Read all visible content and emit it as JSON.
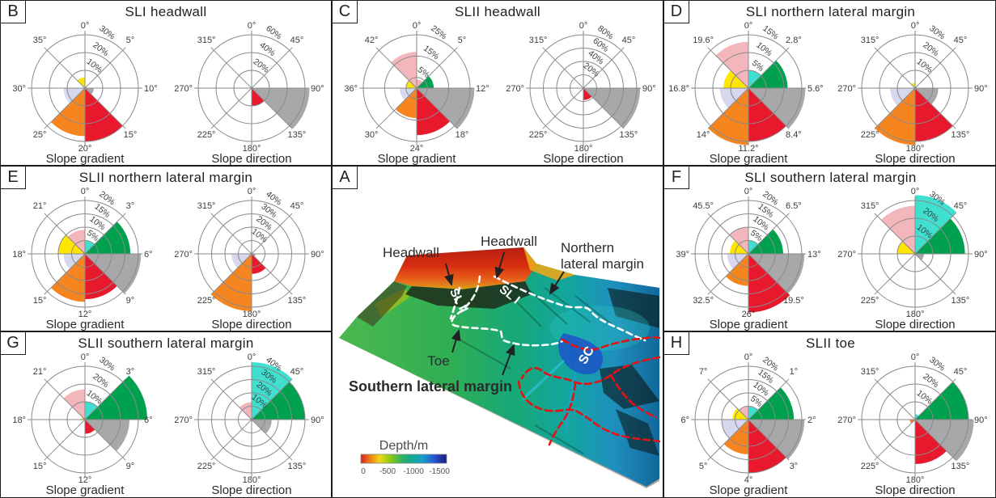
{
  "figure": {
    "background": "#ffffff"
  },
  "colors": {
    "red": "#e8192c",
    "orange": "#f6851f",
    "gray": "#a8a8aa",
    "green": "#00a14e",
    "cyan": "#3fe0d0",
    "pink": "#f3b6ba",
    "lavender": "#d7d7ee",
    "yellow": "#ffe600",
    "grid": "#8a8a8c",
    "map_outline_white": "#ffffff",
    "map_outline_red": "#e81010"
  },
  "chart_data": {
    "type": "rose-multi",
    "ring_unit": "%",
    "panels": [
      {
        "letter": "B",
        "title": "SLI headwall",
        "roses": [
          {
            "subtitle": "Slope gradient",
            "axis": [
              "0°",
              "5°",
              "10°",
              "15°",
              "20°",
              "25°",
              "30°",
              "35°"
            ],
            "rings": [
              10,
              20,
              30
            ],
            "wedges": [
              [
                "gray",
                90,
                135,
                5
              ],
              [
                "red",
                135,
                180,
                30
              ],
              [
                "orange",
                180,
                225,
                27
              ],
              [
                "lavender",
                225,
                270,
                12
              ],
              [
                "yellow",
                315,
                360,
                6
              ]
            ]
          },
          {
            "subtitle": "Slope direction",
            "axis": [
              "0°",
              "45°",
              "90°",
              "135°",
              "180°",
              "225°",
              "270°",
              "315°"
            ],
            "rings": [
              20,
              40,
              60
            ],
            "wedges": [
              [
                "gray",
                90,
                135,
                65
              ],
              [
                "red",
                135,
                180,
                20
              ]
            ]
          }
        ]
      },
      {
        "letter": "C",
        "title": "SLII headwall",
        "roses": [
          {
            "subtitle": "Slope gradient",
            "axis": [
              "0°",
              "5°",
              "12°",
              "18°",
              "24°",
              "30°",
              "36°",
              "42°"
            ],
            "rings": [
              5,
              15,
              25
            ],
            "wedges": [
              [
                "pink",
                0,
                45,
                4
              ],
              [
                "green",
                45,
                90,
                8
              ],
              [
                "gray",
                90,
                135,
                27
              ],
              [
                "red",
                135,
                180,
                22
              ],
              [
                "orange",
                180,
                225,
                14
              ],
              [
                "lavender",
                225,
                270,
                8
              ],
              [
                "yellow",
                270,
                315,
                5
              ],
              [
                "pink",
                315,
                360,
                17
              ]
            ]
          },
          {
            "subtitle": "Slope direction",
            "axis": [
              "0°",
              "45°",
              "90°",
              "135°",
              "180°",
              "225°",
              "270°",
              "315°"
            ],
            "rings": [
              20,
              40,
              60,
              80
            ],
            "wedges": [
              [
                "gray",
                90,
                135,
                85
              ],
              [
                "red",
                135,
                180,
                18
              ]
            ]
          }
        ]
      },
      {
        "letter": "D",
        "title": "SLI northern lateral margin",
        "roses": [
          {
            "subtitle": "Slope gradient",
            "axis": [
              "0°",
              "2.8°",
              "5.6°",
              "8.4°",
              "11.2°",
              "14°",
              "16.8°",
              "19.6°"
            ],
            "rings": [
              5,
              10,
              15
            ],
            "wedges": [
              [
                "cyan",
                0,
                45,
                5
              ],
              [
                "green",
                45,
                90,
                11
              ],
              [
                "gray",
                90,
                135,
                16
              ],
              [
                "red",
                135,
                180,
                15
              ],
              [
                "orange",
                180,
                225,
                16
              ],
              [
                "lavender",
                225,
                270,
                8
              ],
              [
                "yellow",
                270,
                315,
                7
              ],
              [
                "pink",
                315,
                360,
                13
              ]
            ]
          },
          {
            "subtitle": "Slope direction",
            "axis": [
              "0°",
              "45°",
              "90°",
              "135°",
              "180°",
              "225°",
              "270°",
              "315°"
            ],
            "rings": [
              10,
              20,
              30
            ],
            "wedges": [
              [
                "gray",
                90,
                135,
                13
              ],
              [
                "red",
                135,
                180,
                30
              ],
              [
                "orange",
                180,
                225,
                32
              ],
              [
                "lavender",
                225,
                270,
                14
              ],
              [
                "yellow",
                315,
                360,
                3
              ]
            ]
          }
        ]
      },
      {
        "letter": "E",
        "title": "SLII northern lateral margin",
        "roses": [
          {
            "subtitle": "Slope gradient",
            "axis": [
              "0°",
              "3°",
              "6°",
              "9°",
              "12°",
              "15°",
              "18°",
              "21°"
            ],
            "rings": [
              5,
              10,
              15,
              20
            ],
            "wedges": [
              [
                "cyan",
                0,
                45,
                5
              ],
              [
                "green",
                45,
                90,
                17
              ],
              [
                "gray",
                90,
                135,
                21
              ],
              [
                "red",
                135,
                180,
                17
              ],
              [
                "orange",
                180,
                225,
                18
              ],
              [
                "lavender",
                225,
                270,
                8
              ],
              [
                "yellow",
                270,
                315,
                10
              ],
              [
                "pink",
                315,
                360,
                9
              ]
            ]
          },
          {
            "subtitle": "Slope direction",
            "axis": [
              "0°",
              "45°",
              "90°",
              "135°",
              "180°",
              "225°",
              "270°",
              "315°"
            ],
            "rings": [
              10,
              20,
              30,
              40
            ],
            "wedges": [
              [
                "gray",
                90,
                135,
                3
              ],
              [
                "red",
                135,
                180,
                15
              ],
              [
                "orange",
                180,
                225,
                43
              ],
              [
                "lavender",
                225,
                270,
                15
              ]
            ]
          }
        ]
      },
      {
        "letter": "F",
        "title": "SLI southern lateral margin",
        "roses": [
          {
            "subtitle": "Slope gradient",
            "axis": [
              "0°",
              "6.5°",
              "13°",
              "19.5°",
              "26°",
              "32.5°",
              "39°",
              "45.5°"
            ],
            "rings": [
              5,
              10,
              15,
              20
            ],
            "wedges": [
              [
                "cyan",
                0,
                45,
                5
              ],
              [
                "green",
                45,
                90,
                13
              ],
              [
                "gray",
                90,
                135,
                21
              ],
              [
                "red",
                135,
                180,
                22
              ],
              [
                "orange",
                180,
                225,
                12
              ],
              [
                "lavender",
                225,
                270,
                8
              ],
              [
                "yellow",
                270,
                315,
                7
              ],
              [
                "pink",
                315,
                360,
                10
              ]
            ]
          },
          {
            "subtitle": "Slope direction",
            "axis": [
              "0°",
              "45°",
              "90°",
              "135°",
              "180°",
              "225°",
              "270°",
              "315°"
            ],
            "rings": [
              10,
              20,
              30
            ],
            "wedges": [
              [
                "cyan",
                0,
                45,
                33
              ],
              [
                "green",
                45,
                90,
                28
              ],
              [
                "gray",
                90,
                135,
                5
              ],
              [
                "yellow",
                270,
                315,
                10
              ],
              [
                "pink",
                315,
                360,
                27
              ]
            ]
          }
        ]
      },
      {
        "letter": "G",
        "title": "SLII southern lateral margin",
        "roses": [
          {
            "subtitle": "Slope gradient",
            "axis": [
              "0°",
              "3°",
              "6°",
              "9°",
              "12°",
              "15°",
              "18°",
              "21°"
            ],
            "rings": [
              10,
              20,
              30
            ],
            "wedges": [
              [
                "cyan",
                0,
                45,
                10
              ],
              [
                "green",
                45,
                90,
                35
              ],
              [
                "gray",
                90,
                135,
                25
              ],
              [
                "red",
                135,
                180,
                8
              ],
              [
                "yellow",
                270,
                315,
                2
              ],
              [
                "pink",
                315,
                360,
                17
              ]
            ]
          },
          {
            "subtitle": "Slope direction",
            "axis": [
              "0°",
              "45°",
              "90°",
              "135°",
              "180°",
              "225°",
              "270°",
              "315°"
            ],
            "rings": [
              10,
              20,
              30,
              40
            ],
            "wedges": [
              [
                "cyan",
                0,
                45,
                43
              ],
              [
                "green",
                45,
                90,
                40
              ],
              [
                "gray",
                90,
                135,
                15
              ],
              [
                "pink",
                315,
                360,
                13
              ]
            ]
          }
        ]
      },
      {
        "letter": "H",
        "title": "SLII toe",
        "roses": [
          {
            "subtitle": "Slope gradient",
            "axis": [
              "0°",
              "1°",
              "2°",
              "3°",
              "4°",
              "5°",
              "6°",
              "7°"
            ],
            "rings": [
              5,
              10,
              15,
              20
            ],
            "wedges": [
              [
                "cyan",
                0,
                45,
                5
              ],
              [
                "green",
                45,
                90,
                17
              ],
              [
                "gray",
                90,
                135,
                21
              ],
              [
                "red",
                135,
                180,
                20
              ],
              [
                "orange",
                180,
                225,
                13
              ],
              [
                "lavender",
                225,
                270,
                10
              ],
              [
                "yellow",
                270,
                315,
                6
              ],
              [
                "pink",
                315,
                360,
                5
              ]
            ]
          },
          {
            "subtitle": "Slope direction",
            "axis": [
              "0°",
              "45°",
              "90°",
              "135°",
              "180°",
              "225°",
              "270°",
              "315°"
            ],
            "rings": [
              10,
              20,
              30
            ],
            "wedges": [
              [
                "cyan",
                0,
                45,
                3
              ],
              [
                "green",
                45,
                90,
                30
              ],
              [
                "gray",
                90,
                135,
                33
              ],
              [
                "red",
                135,
                180,
                25
              ],
              [
                "orange",
                225,
                270,
                3
              ]
            ]
          }
        ]
      }
    ]
  },
  "map": {
    "letter": "A",
    "labels": {
      "headwall_left": "Headwall",
      "headwall_right": "Headwall",
      "northern_line1": "Northern",
      "northern_line2": "lateral margin",
      "toe": "Toe",
      "southern": "Southern lateral margin",
      "sl1": "SL I",
      "sl2": "SL II",
      "sc": "SC"
    },
    "colorbar": {
      "title": "Depth/m",
      "ticks": [
        "0",
        "-500",
        "-1000",
        "-1500"
      ]
    }
  }
}
